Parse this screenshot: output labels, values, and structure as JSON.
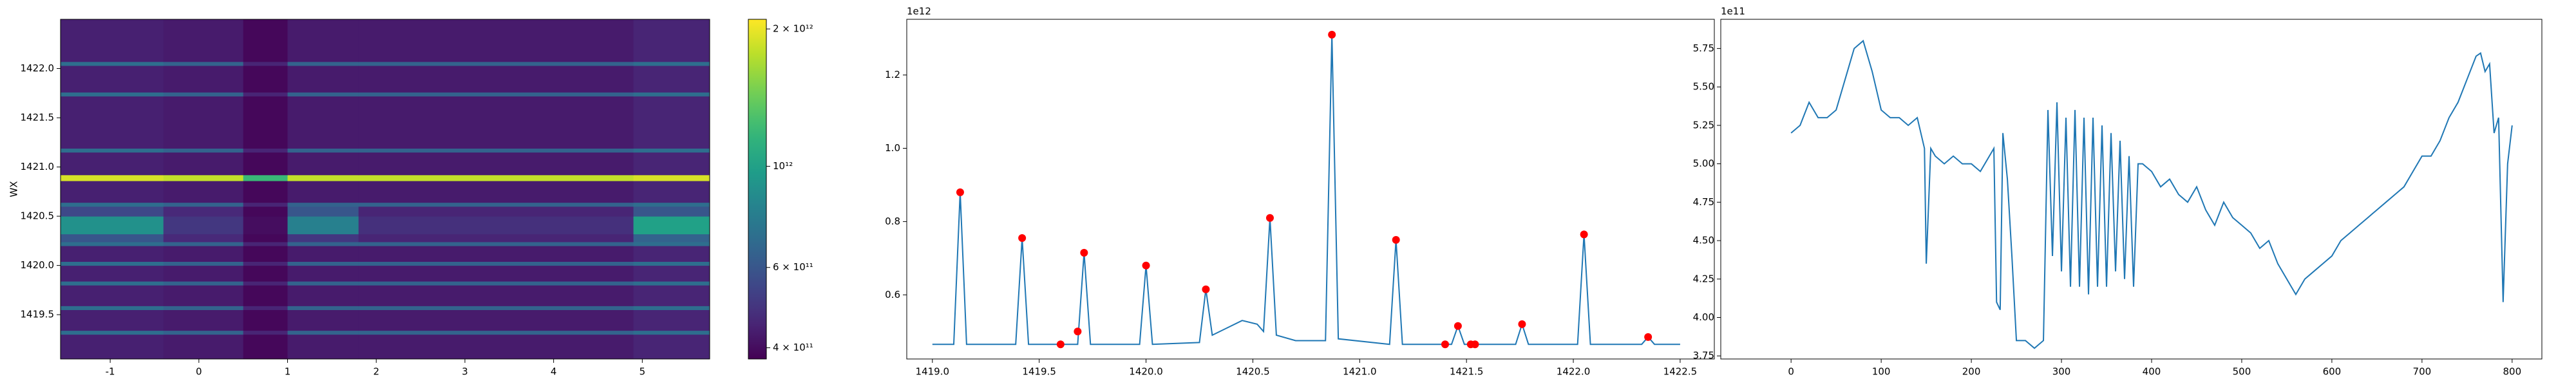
{
  "chart_data": [
    {
      "type": "heatmap",
      "ylabel": "WX",
      "colormap": "viridis",
      "log_color": true,
      "xlim": [
        -1.56,
        5.76
      ],
      "ylim": [
        1419.05,
        1422.5
      ],
      "xticks": [
        -1,
        0,
        1,
        2,
        3,
        4,
        5
      ],
      "yticks": [
        1419.5,
        {
          "value": 1420,
          "label": "1420.0"
        },
        1420.5,
        {
          "value": 1421,
          "label": "1421.0"
        },
        1421.5,
        {
          "value": 1422,
          "label": "1422.0"
        }
      ],
      "clim": [
        378000000000.0,
        2100000000000.0
      ],
      "cticks": [
        {
          "value": 400000000000.0,
          "label": "4 × 10¹¹"
        },
        {
          "value": 600000000000.0,
          "label": "6 × 10¹¹"
        },
        {
          "value": 1000000000000.0,
          "label": "10¹²"
        },
        {
          "value": 2000000000000.0,
          "label": "2 × 10¹²"
        }
      ],
      "x_edges": [
        -1.56,
        -0.4,
        0.5,
        1.0,
        1.8,
        4.9,
        5.76
      ],
      "y_edges": [
        1419.05,
        1419.3,
        1419.34,
        1419.55,
        1419.59,
        1419.8,
        1419.84,
        1420.0,
        1420.04,
        1420.2,
        1420.24,
        1420.32,
        1420.5,
        1420.6,
        1420.64,
        1420.86,
        1420.92,
        1421.15,
        1421.19,
        1421.72,
        1421.76,
        1422.03,
        1422.07,
        1422.5
      ],
      "z": [
        [
          440000000000.0,
          430000000000.0,
          390000000000.0,
          430000000000.0,
          430000000000.0,
          450000000000.0
        ],
        [
          700000000000.0,
          650000000000.0,
          450000000000.0,
          650000000000.0,
          650000000000.0,
          700000000000.0
        ],
        [
          440000000000.0,
          430000000000.0,
          390000000000.0,
          430000000000.0,
          430000000000.0,
          450000000000.0
        ],
        [
          700000000000.0,
          650000000000.0,
          450000000000.0,
          650000000000.0,
          650000000000.0,
          700000000000.0
        ],
        [
          440000000000.0,
          430000000000.0,
          390000000000.0,
          430000000000.0,
          430000000000.0,
          450000000000.0
        ],
        [
          700000000000.0,
          650000000000.0,
          450000000000.0,
          650000000000.0,
          650000000000.0,
          700000000000.0
        ],
        [
          440000000000.0,
          430000000000.0,
          390000000000.0,
          430000000000.0,
          430000000000.0,
          450000000000.0
        ],
        [
          700000000000.0,
          650000000000.0,
          450000000000.0,
          650000000000.0,
          650000000000.0,
          700000000000.0
        ],
        [
          440000000000.0,
          430000000000.0,
          390000000000.0,
          430000000000.0,
          430000000000.0,
          450000000000.0
        ],
        [
          700000000000.0,
          650000000000.0,
          450000000000.0,
          650000000000.0,
          650000000000.0,
          700000000000.0
        ],
        [
          600000000000.0,
          460000000000.0,
          390000000000.0,
          500000000000.0,
          450000000000.0,
          650000000000.0
        ],
        [
          900000000000.0,
          500000000000.0,
          400000000000.0,
          800000000000.0,
          480000000000.0,
          1000000000000.0
        ],
        [
          550000000000.0,
          460000000000.0,
          390000000000.0,
          600000000000.0,
          450000000000.0,
          600000000000.0
        ],
        [
          700000000000.0,
          650000000000.0,
          450000000000.0,
          650000000000.0,
          650000000000.0,
          700000000000.0
        ],
        [
          440000000000.0,
          430000000000.0,
          390000000000.0,
          430000000000.0,
          430000000000.0,
          450000000000.0
        ],
        [
          1900000000000.0,
          1800000000000.0,
          1200000000000.0,
          1800000000000.0,
          1800000000000.0,
          1900000000000.0
        ],
        [
          440000000000.0,
          430000000000.0,
          390000000000.0,
          430000000000.0,
          430000000000.0,
          450000000000.0
        ],
        [
          700000000000.0,
          650000000000.0,
          450000000000.0,
          650000000000.0,
          650000000000.0,
          700000000000.0
        ],
        [
          440000000000.0,
          430000000000.0,
          390000000000.0,
          430000000000.0,
          430000000000.0,
          450000000000.0
        ],
        [
          700000000000.0,
          650000000000.0,
          450000000000.0,
          650000000000.0,
          650000000000.0,
          700000000000.0
        ],
        [
          440000000000.0,
          430000000000.0,
          390000000000.0,
          430000000000.0,
          430000000000.0,
          450000000000.0
        ],
        [
          700000000000.0,
          650000000000.0,
          450000000000.0,
          650000000000.0,
          650000000000.0,
          700000000000.0
        ],
        [
          440000000000.0,
          430000000000.0,
          390000000000.0,
          430000000000.0,
          430000000000.0,
          450000000000.0
        ]
      ]
    },
    {
      "type": "line",
      "offset_label": "1e12",
      "xlim": [
        1418.88,
        1422.66
      ],
      "ylim": [
        425000000000.0,
        1352000000000.0
      ],
      "xticks": [
        {
          "value": 1419,
          "label": "1419.0"
        },
        1419.5,
        {
          "value": 1420,
          "label": "1420.0"
        },
        1420.5,
        {
          "value": 1421,
          "label": "1421.0"
        },
        1421.5,
        {
          "value": 1422,
          "label": "1422.0"
        },
        1422.5
      ],
      "yticks": [
        {
          "value": 600000000000.0,
          "label": "0.6"
        },
        {
          "value": 800000000000.0,
          "label": "0.8"
        },
        {
          "value": 1000000000000.0,
          "label": "1.0"
        },
        {
          "value": 1200000000000.0,
          "label": "1.2"
        }
      ],
      "x": [
        1419.0,
        1419.1,
        1419.13,
        1419.16,
        1419.39,
        1419.42,
        1419.45,
        1419.68,
        1419.71,
        1419.74,
        1419.97,
        1420.0,
        1420.03,
        1420.25,
        1420.28,
        1420.31,
        1420.38,
        1420.45,
        1420.52,
        1420.55,
        1420.58,
        1420.61,
        1420.7,
        1420.84,
        1420.87,
        1420.9,
        1421.14,
        1421.17,
        1421.2,
        1421.43,
        1421.46,
        1421.49,
        1421.73,
        1421.76,
        1421.79,
        1422.02,
        1422.05,
        1422.08,
        1422.32,
        1422.35,
        1422.38,
        1422.5
      ],
      "series": [
        {
          "color": "#1f77b4",
          "values": [
            465000000000.0,
            465000000000.0,
            880000000000.0,
            465000000000.0,
            465000000000.0,
            755000000000.0,
            465000000000.0,
            465000000000.0,
            715000000000.0,
            465000000000.0,
            465000000000.0,
            680000000000.0,
            465000000000.0,
            470000000000.0,
            615000000000.0,
            490000000000.0,
            510000000000.0,
            530000000000.0,
            520000000000.0,
            500000000000.0,
            810000000000.0,
            490000000000.0,
            475000000000.0,
            475000000000.0,
            1310000000000.0,
            480000000000.0,
            465000000000.0,
            750000000000.0,
            465000000000.0,
            465000000000.0,
            515000000000.0,
            465000000000.0,
            465000000000.0,
            520000000000.0,
            465000000000.0,
            465000000000.0,
            765000000000.0,
            465000000000.0,
            465000000000.0,
            485000000000.0,
            465000000000.0,
            465000000000.0
          ]
        }
      ],
      "markers": {
        "color": "red",
        "x": [
          1419.13,
          1419.42,
          1419.6,
          1419.68,
          1419.71,
          1420.0,
          1420.28,
          1420.58,
          1420.87,
          1421.17,
          1421.4,
          1421.46,
          1421.52,
          1421.54,
          1421.76,
          1422.05,
          1422.35
        ],
        "values": [
          880000000000.0,
          755000000000.0,
          465000000000.0,
          500000000000.0,
          715000000000.0,
          680000000000.0,
          615000000000.0,
          810000000000.0,
          1310000000000.0,
          750000000000.0,
          465000000000.0,
          515000000000.0,
          465000000000.0,
          465000000000.0,
          520000000000.0,
          765000000000.0,
          485000000000.0
        ]
      }
    },
    {
      "type": "line",
      "offset_label": "1e11",
      "xlim": [
        -78,
        833
      ],
      "ylim": [
        373000000000.0,
        594000000000.0
      ],
      "xticks": [
        0,
        100,
        200,
        300,
        400,
        500,
        600,
        700,
        800
      ],
      "yticks": [
        {
          "value": 375000000000.0,
          "label": "3.75"
        },
        {
          "value": 400000000000.0,
          "label": "4.00"
        },
        {
          "value": 425000000000.0,
          "label": "4.25"
        },
        {
          "value": 450000000000.0,
          "label": "4.50"
        },
        {
          "value": 475000000000.0,
          "label": "4.75"
        },
        {
          "value": 500000000000.0,
          "label": "5.00"
        },
        {
          "value": 525000000000.0,
          "label": "5.25"
        },
        {
          "value": 550000000000.0,
          "label": "5.50"
        },
        {
          "value": 575000000000.0,
          "label": "5.75"
        }
      ],
      "x": [
        0,
        10,
        20,
        30,
        40,
        50,
        60,
        70,
        80,
        90,
        100,
        110,
        120,
        130,
        140,
        148,
        150,
        155,
        160,
        170,
        180,
        190,
        200,
        210,
        220,
        225,
        228,
        232,
        235,
        240,
        245,
        250,
        260,
        270,
        280,
        285,
        290,
        295,
        300,
        305,
        310,
        315,
        320,
        325,
        330,
        335,
        340,
        345,
        350,
        355,
        360,
        365,
        370,
        375,
        380,
        385,
        390,
        400,
        410,
        420,
        430,
        440,
        450,
        460,
        470,
        480,
        490,
        500,
        510,
        520,
        530,
        540,
        550,
        560,
        570,
        580,
        590,
        600,
        610,
        620,
        630,
        640,
        650,
        660,
        670,
        680,
        690,
        700,
        710,
        720,
        730,
        740,
        750,
        760,
        765,
        770,
        775,
        780,
        785,
        790,
        795,
        800
      ],
      "series": [
        {
          "color": "#1f77b4",
          "values": [
            520000000000.0,
            525000000000.0,
            540000000000.0,
            530000000000.0,
            530000000000.0,
            535000000000.0,
            555000000000.0,
            575000000000.0,
            580000000000.0,
            560000000000.0,
            535000000000.0,
            530000000000.0,
            530000000000.0,
            525000000000.0,
            530000000000.0,
            510000000000.0,
            435000000000.0,
            510000000000.0,
            505000000000.0,
            500000000000.0,
            505000000000.0,
            500000000000.0,
            500000000000.0,
            495000000000.0,
            505000000000.0,
            510000000000.0,
            410000000000.0,
            405000000000.0,
            520000000000.0,
            490000000000.0,
            440000000000.0,
            385000000000.0,
            385000000000.0,
            380000000000.0,
            385000000000.0,
            535000000000.0,
            440000000000.0,
            540000000000.0,
            430000000000.0,
            530000000000.0,
            420000000000.0,
            535000000000.0,
            420000000000.0,
            530000000000.0,
            415000000000.0,
            530000000000.0,
            420000000000.0,
            525000000000.0,
            420000000000.0,
            520000000000.0,
            430000000000.0,
            515000000000.0,
            425000000000.0,
            505000000000.0,
            420000000000.0,
            500000000000.0,
            500000000000.0,
            495000000000.0,
            485000000000.0,
            490000000000.0,
            480000000000.0,
            475000000000.0,
            485000000000.0,
            470000000000.0,
            460000000000.0,
            475000000000.0,
            465000000000.0,
            460000000000.0,
            455000000000.0,
            445000000000.0,
            450000000000.0,
            435000000000.0,
            425000000000.0,
            415000000000.0,
            425000000000.0,
            430000000000.0,
            435000000000.0,
            440000000000.0,
            450000000000.0,
            455000000000.0,
            460000000000.0,
            465000000000.0,
            470000000000.0,
            475000000000.0,
            480000000000.0,
            485000000000.0,
            495000000000.0,
            505000000000.0,
            505000000000.0,
            515000000000.0,
            530000000000.0,
            540000000000.0,
            555000000000.0,
            570000000000.0,
            572000000000.0,
            560000000000.0,
            565000000000.0,
            520000000000.0,
            530000000000.0,
            410000000000.0,
            500000000000.0,
            525000000000.0
          ]
        }
      ]
    }
  ]
}
